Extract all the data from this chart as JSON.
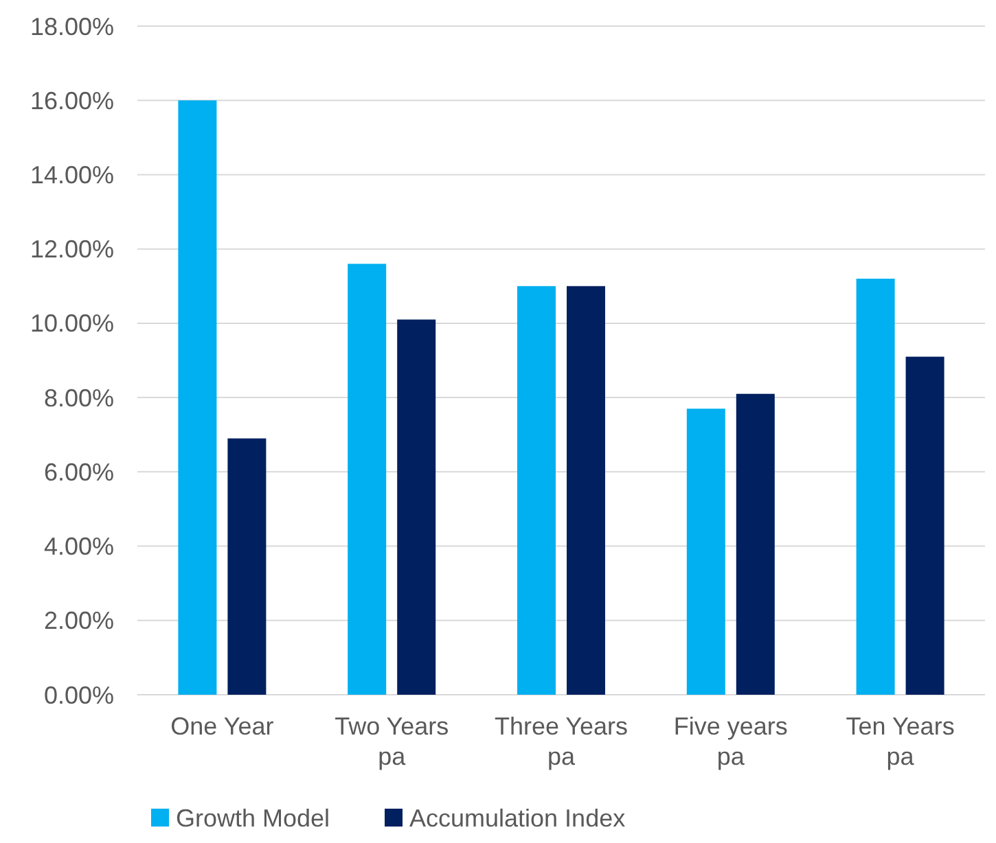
{
  "chart_data": {
    "type": "bar",
    "categories": [
      "One Year",
      "Two Years pa",
      "Three Years pa",
      "Five years pa",
      "Ten Years pa"
    ],
    "series": [
      {
        "name": "Growth Model",
        "color": "#00b0f0",
        "values": [
          16.0,
          11.6,
          11.0,
          7.7,
          11.2
        ]
      },
      {
        "name": "Accumulation Index",
        "color": "#002060",
        "values": [
          6.9,
          10.1,
          11.0,
          8.1,
          9.1
        ]
      }
    ],
    "ylim": [
      0,
      18
    ],
    "yticks": [
      {
        "value": 0,
        "label": "0.00%"
      },
      {
        "value": 2,
        "label": "2.00%"
      },
      {
        "value": 4,
        "label": "4.00%"
      },
      {
        "value": 6,
        "label": "6.00%"
      },
      {
        "value": 8,
        "label": "8.00%"
      },
      {
        "value": 10,
        "label": "10.00%"
      },
      {
        "value": 12,
        "label": "12.00%"
      },
      {
        "value": 14,
        "label": "14.00%"
      },
      {
        "value": 16,
        "label": "16.00%"
      },
      {
        "value": 18,
        "label": "18.00%"
      }
    ],
    "grid": "y",
    "legend": "bottom"
  }
}
